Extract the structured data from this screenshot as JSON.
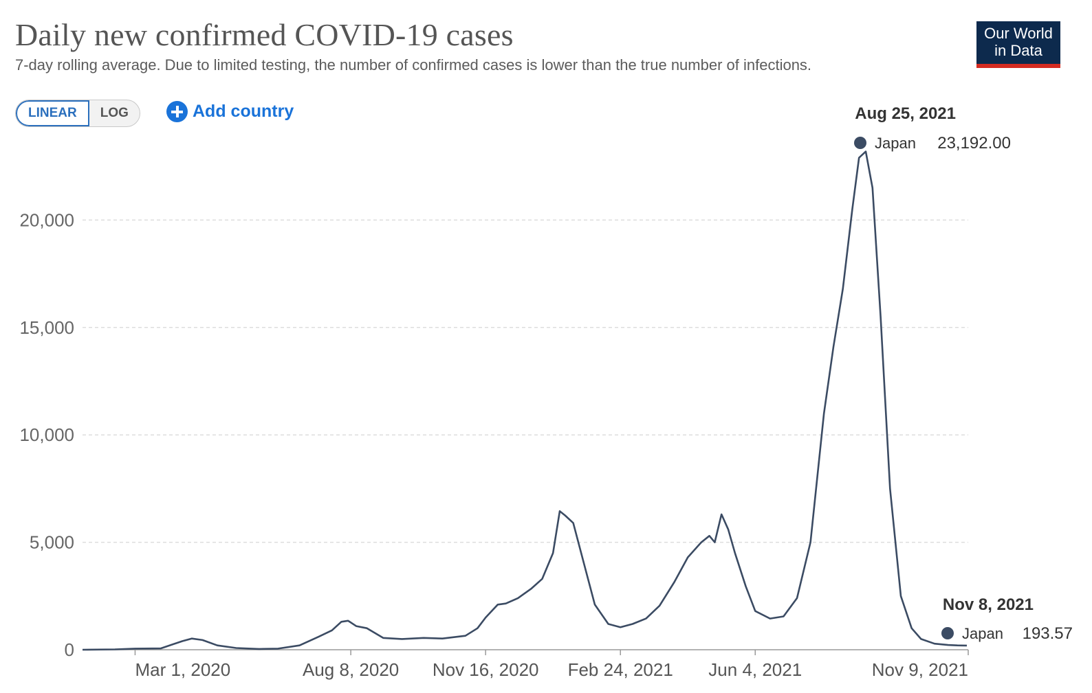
{
  "header": {
    "title": "Daily new confirmed COVID-19 cases",
    "subtitle": "7-day rolling average. Due to limited testing, the number of confirmed cases is lower than the true number of infections."
  },
  "logo": {
    "line1": "Our World",
    "line2": "in Data"
  },
  "controls": {
    "linear_label": "LINEAR",
    "log_label": "LOG",
    "add_country_label": "Add country"
  },
  "colors": {
    "series": "#3b4b63",
    "accent": "#1a73d9",
    "logo_bg": "#0d2a4d",
    "logo_bar": "#d42b21"
  },
  "chart_data": {
    "type": "line",
    "title": "Daily new confirmed COVID-19 cases",
    "subtitle": "7-day rolling average. Due to limited testing, the number of confirmed cases is lower than the true number of infections.",
    "xlabel": "",
    "ylabel": "",
    "ylim": [
      0,
      23500
    ],
    "grid": "horizontal-dashed",
    "y_ticks": [
      0,
      5000,
      10000,
      15000,
      20000
    ],
    "y_tick_labels": [
      "0",
      "5,000",
      "10,000",
      "15,000",
      "20,000"
    ],
    "x_ticks": [
      "2020-03-01",
      "2020-08-08",
      "2020-11-16",
      "2021-02-24",
      "2021-06-04",
      "2021-11-09"
    ],
    "x_tick_labels": [
      "Mar 1, 2020",
      "Aug 8, 2020",
      "Nov 16, 2020",
      "Feb 24, 2021",
      "Jun 4, 2021",
      "Nov 9, 2021"
    ],
    "x_range": [
      "2020-01-22",
      "2021-11-09"
    ],
    "series": [
      {
        "name": "Japan",
        "x": [
          "2020-01-22",
          "2020-02-15",
          "2020-03-01",
          "2020-03-20",
          "2020-04-05",
          "2020-04-12",
          "2020-04-20",
          "2020-05-01",
          "2020-05-15",
          "2020-06-01",
          "2020-06-15",
          "2020-07-01",
          "2020-07-15",
          "2020-07-25",
          "2020-08-01",
          "2020-08-06",
          "2020-08-12",
          "2020-08-20",
          "2020-09-01",
          "2020-09-15",
          "2020-10-01",
          "2020-10-15",
          "2020-11-01",
          "2020-11-10",
          "2020-11-16",
          "2020-11-25",
          "2020-12-01",
          "2020-12-10",
          "2020-12-20",
          "2020-12-28",
          "2021-01-05",
          "2021-01-10",
          "2021-01-14",
          "2021-01-20",
          "2021-01-28",
          "2021-02-05",
          "2021-02-15",
          "2021-02-24",
          "2021-03-05",
          "2021-03-15",
          "2021-03-25",
          "2021-04-05",
          "2021-04-15",
          "2021-04-25",
          "2021-05-01",
          "2021-05-05",
          "2021-05-10",
          "2021-05-15",
          "2021-05-20",
          "2021-05-28",
          "2021-06-04",
          "2021-06-15",
          "2021-06-25",
          "2021-07-05",
          "2021-07-15",
          "2021-07-25",
          "2021-08-01",
          "2021-08-08",
          "2021-08-15",
          "2021-08-20",
          "2021-08-25",
          "2021-08-30",
          "2021-09-05",
          "2021-09-12",
          "2021-09-20",
          "2021-09-28",
          "2021-10-05",
          "2021-10-15",
          "2021-10-25",
          "2021-11-01",
          "2021-11-08"
        ],
        "y": [
          0,
          15,
          50,
          60,
          400,
          520,
          450,
          200,
          80,
          35,
          50,
          200,
          600,
          900,
          1300,
          1350,
          1100,
          1000,
          550,
          500,
          550,
          520,
          650,
          1000,
          1500,
          2100,
          2150,
          2400,
          2850,
          3300,
          4500,
          6450,
          6250,
          5900,
          4000,
          2100,
          1200,
          1050,
          1200,
          1450,
          2050,
          3150,
          4300,
          5000,
          5300,
          5000,
          6300,
          5600,
          4500,
          2950,
          1800,
          1450,
          1550,
          2400,
          5000,
          11000,
          14100,
          16800,
          20500,
          22900,
          23192,
          21500,
          15500,
          7500,
          2500,
          1000,
          500,
          280,
          220,
          200,
          193.57
        ]
      }
    ],
    "tooltips": [
      {
        "date_label": "Aug 25, 2021",
        "country": "Japan",
        "value_label": "23,192.00",
        "x": "2021-08-25",
        "y": 23192
      },
      {
        "date_label": "Nov 8, 2021",
        "country": "Japan",
        "value_label": "193.57",
        "x": "2021-11-08",
        "y": 193.57
      }
    ]
  }
}
